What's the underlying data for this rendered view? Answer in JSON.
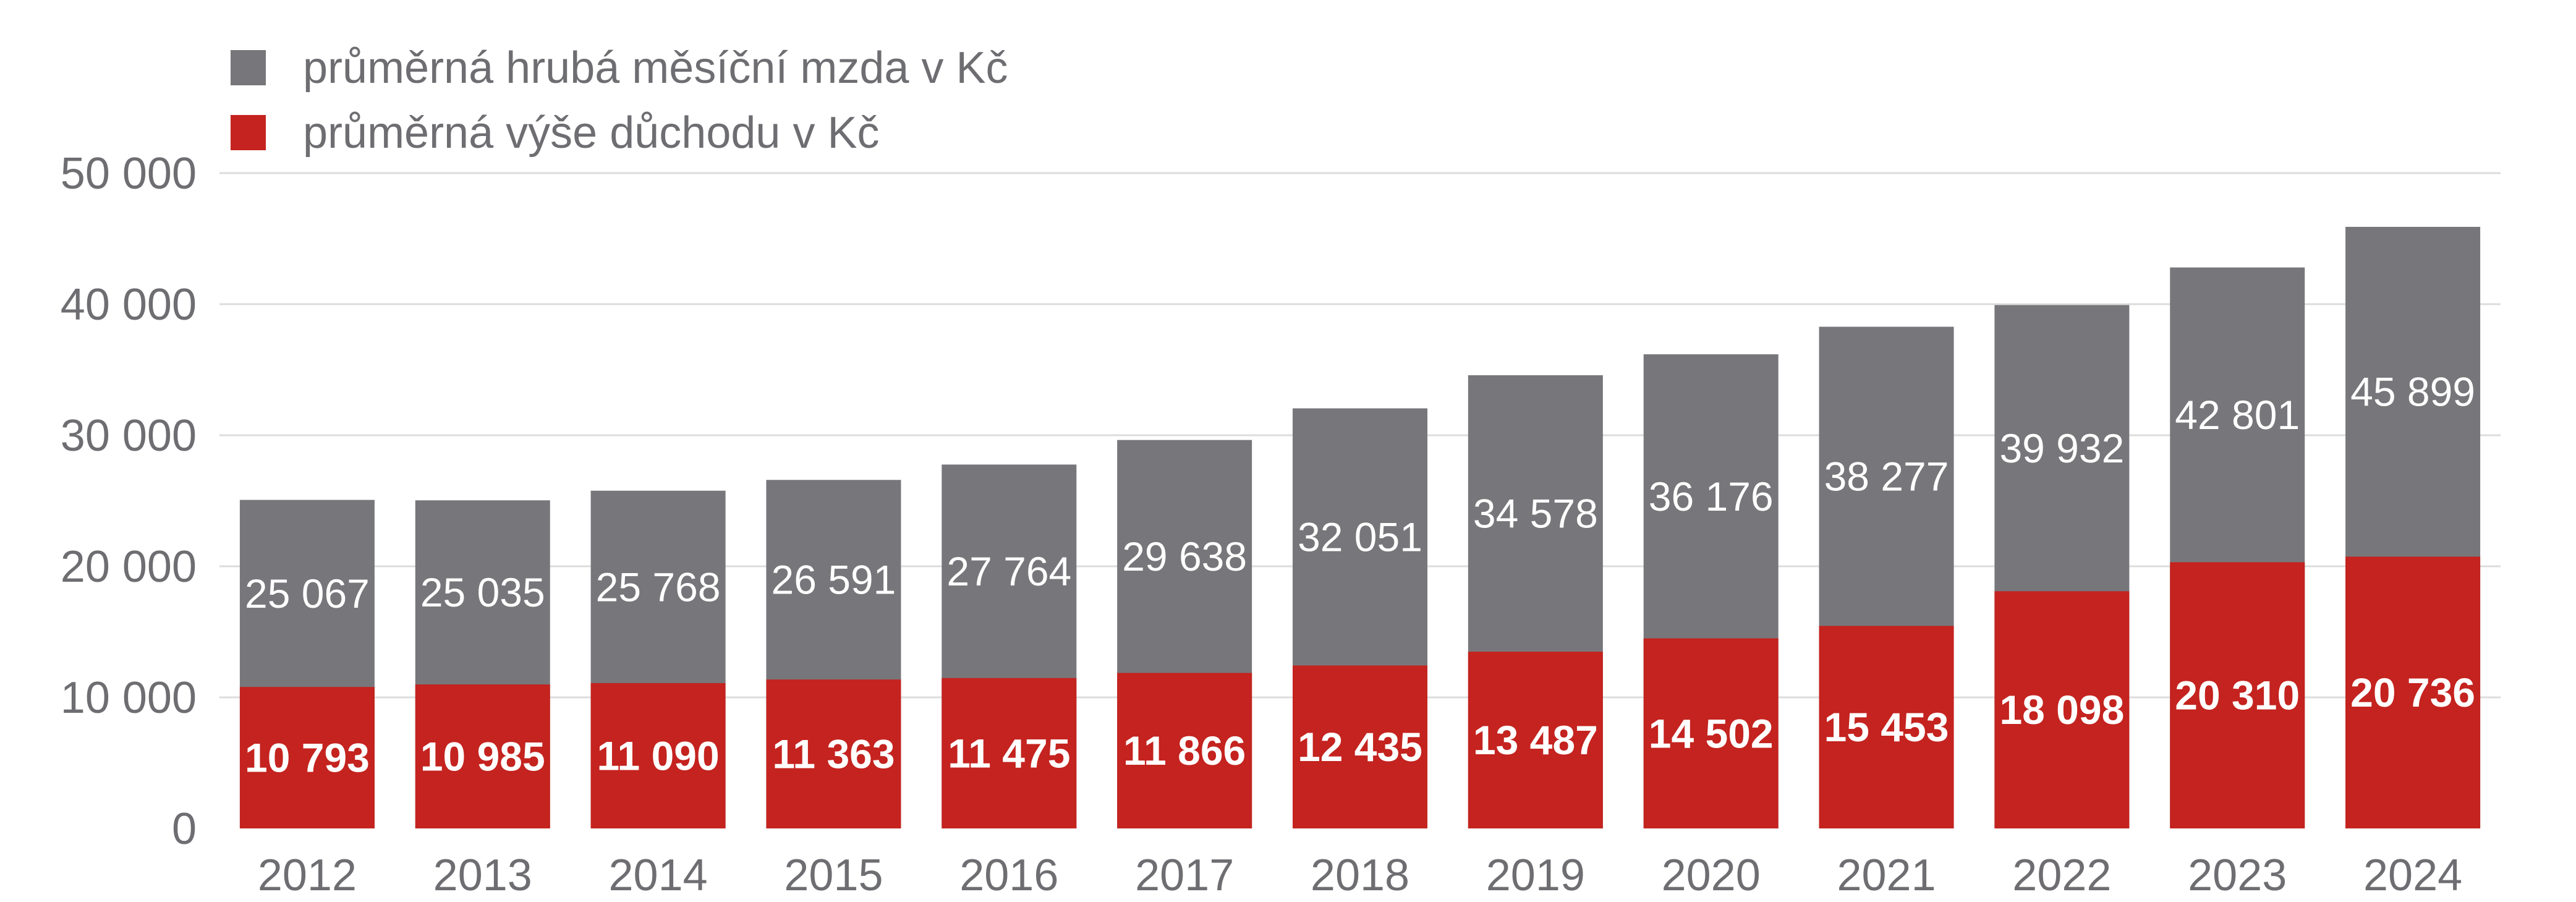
{
  "chart_data": {
    "type": "bar",
    "title": "",
    "xlabel": "",
    "ylabel": "",
    "ylim": [
      0,
      50000
    ],
    "yticks": [
      "0",
      "10 000",
      "20 000",
      "30 000",
      "40 000",
      "50 000"
    ],
    "grid": true,
    "legend_position": "top-left",
    "categories": [
      "2012",
      "2013",
      "2014",
      "2015",
      "2016",
      "2017",
      "2018",
      "2019",
      "2020",
      "2021",
      "2022",
      "2023",
      "2024"
    ],
    "series": [
      {
        "name": "průměrná hrubá měsíční mzda v Kč",
        "color": "#77777b",
        "values": [
          25067,
          25035,
          25768,
          26591,
          27764,
          29638,
          32051,
          34578,
          36176,
          38277,
          39932,
          42801,
          45899
        ],
        "labels": [
          "25 067",
          "25 035",
          "25 768",
          "26 591",
          "27 764",
          "29 638",
          "32 051",
          "34 578",
          "36 176",
          "38 277",
          "39 932",
          "42 801",
          "45 899"
        ]
      },
      {
        "name": "průměrná výše důchodu v Kč",
        "color": "#c4231f",
        "values": [
          10793,
          10985,
          11090,
          11363,
          11475,
          11866,
          12435,
          13487,
          14502,
          15453,
          18098,
          20310,
          20736
        ],
        "labels": [
          "10 793",
          "10 985",
          "11 090",
          "11 363",
          "11 475",
          "11 866",
          "12 435",
          "13 487",
          "14 502",
          "15 453",
          "18 098",
          "20 310",
          "20 736"
        ]
      }
    ]
  }
}
